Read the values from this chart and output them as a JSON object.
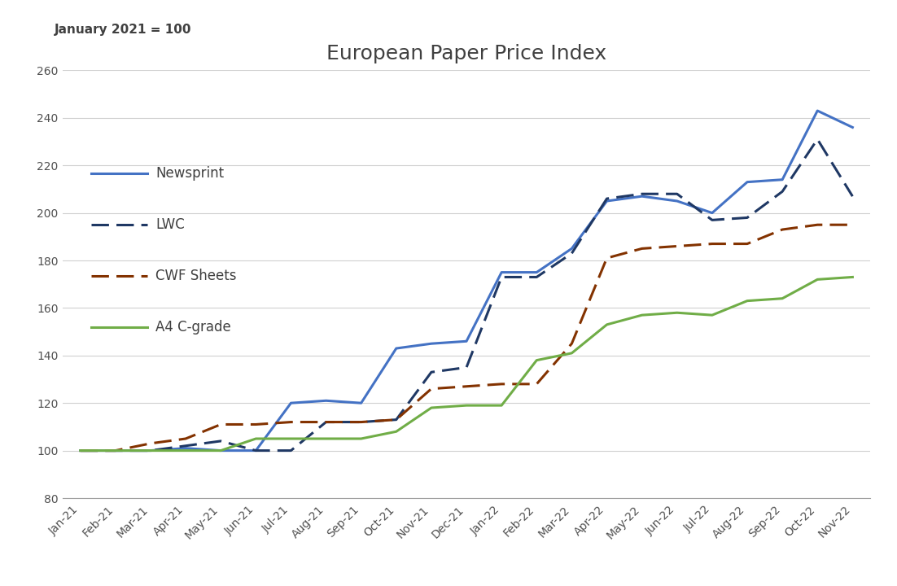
{
  "title": "European Paper Price Index",
  "subtitle": "January 2021 = 100",
  "x_labels": [
    "Jan-21",
    "Feb-21",
    "Mar-21",
    "Apr-21",
    "May-21",
    "Jun-21",
    "Jul-21",
    "Aug-21",
    "Sep-21",
    "Oct-21",
    "Nov-21",
    "Dec-21",
    "Jan-22",
    "Feb-22",
    "Mar-22",
    "Apr-22",
    "May-22",
    "Jun-22",
    "Jul-22",
    "Aug-22",
    "Sep-22",
    "Oct-22",
    "Nov-22"
  ],
  "newsprint": [
    100,
    100,
    100,
    101,
    100,
    100,
    120,
    121,
    120,
    143,
    145,
    146,
    175,
    175,
    185,
    205,
    207,
    205,
    200,
    213,
    214,
    243,
    236
  ],
  "lwc": [
    100,
    100,
    100,
    102,
    104,
    100,
    100,
    112,
    112,
    113,
    133,
    135,
    173,
    173,
    183,
    206,
    208,
    208,
    197,
    198,
    209,
    231,
    207
  ],
  "cwf_sheets": [
    100,
    100,
    103,
    105,
    111,
    111,
    112,
    112,
    112,
    113,
    126,
    127,
    128,
    128,
    145,
    181,
    185,
    186,
    187,
    187,
    193,
    195,
    195
  ],
  "a4_cgrade": [
    100,
    100,
    100,
    100,
    100,
    105,
    105,
    105,
    105,
    108,
    118,
    119,
    119,
    138,
    141,
    153,
    157,
    158,
    157,
    163,
    164,
    172,
    173
  ],
  "newsprint_color": "#4472C4",
  "lwc_color": "#1F3864",
  "cwf_color": "#833200",
  "a4_color": "#70AD47",
  "background_color": "#FFFFFF",
  "ylim": [
    80,
    260
  ],
  "yticks": [
    80,
    100,
    120,
    140,
    160,
    180,
    200,
    220,
    240,
    260
  ],
  "title_fontsize": 18,
  "subtitle_fontsize": 11,
  "tick_fontsize": 10,
  "legend_fontsize": 12
}
